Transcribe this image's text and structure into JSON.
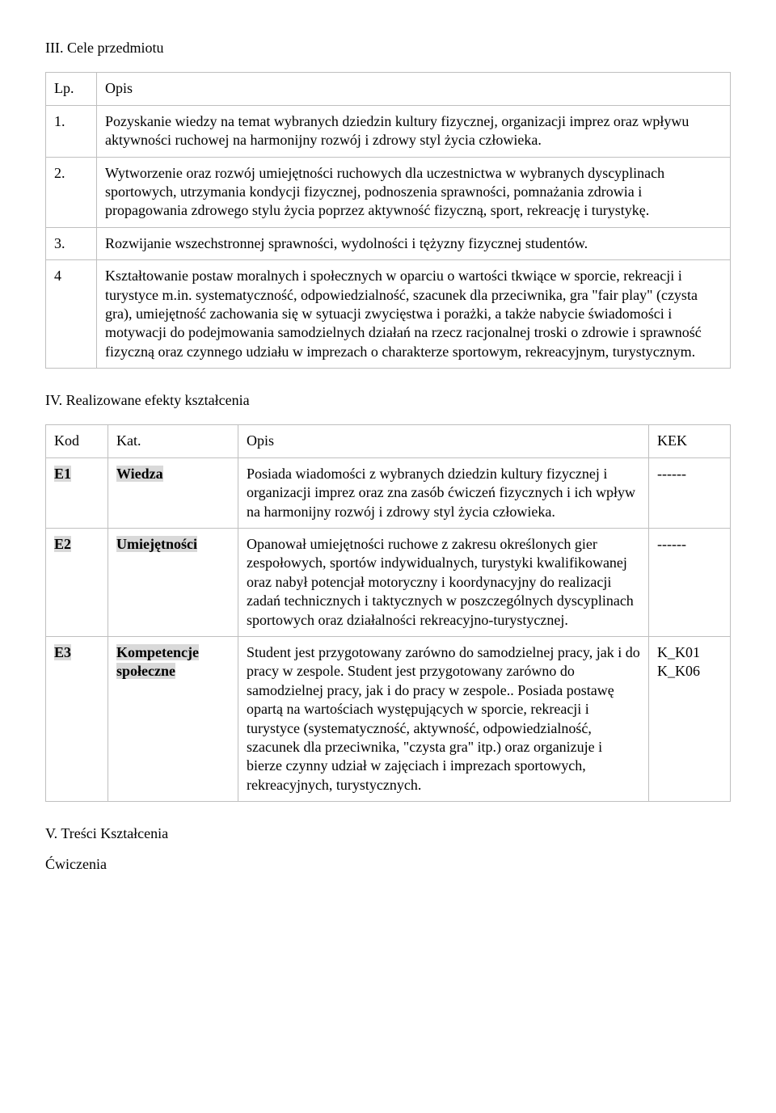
{
  "section3": {
    "heading": "III. Cele przedmiotu",
    "col_lp": "Lp.",
    "col_opis": "Opis",
    "rows": [
      {
        "lp": "1.",
        "opis": "Pozyskanie wiedzy na temat wybranych dziedzin kultury fizycznej, organizacji imprez oraz wpływu aktywności ruchowej na harmonijny rozwój i zdrowy styl życia człowieka."
      },
      {
        "lp": "2.",
        "opis": "Wytworzenie oraz rozwój umiejętności ruchowych dla uczestnictwa w wybranych dyscyplinach sportowych, utrzymania kondycji fizycznej, podnoszenia sprawności, pomnażania zdrowia i propagowania zdrowego stylu życia poprzez aktywność fizyczną, sport, rekreację i turystykę."
      },
      {
        "lp": "3.",
        "opis": "Rozwijanie wszechstronnej sprawności, wydolności i tężyzny fizycznej studentów."
      },
      {
        "lp": "4",
        "opis": "Kształtowanie postaw moralnych i społecznych w oparciu o wartości tkwiące w sporcie, rekreacji i turystyce m.in. systematyczność, odpowiedzialność, szacunek dla przeciwnika, gra \"fair play\" (czysta gra), umiejętność zachowania się w sytuacji zwycięstwa i porażki, a także nabycie świadomości i motywacji do podejmowania samodzielnych działań na rzecz racjonalnej troski o zdrowie i sprawność fizyczną oraz czynnego udziału w imprezach o charakterze sportowym, rekreacyjnym, turystycznym."
      }
    ]
  },
  "section4": {
    "heading": "IV. Realizowane efekty kształcenia",
    "col_kod": "Kod",
    "col_kat": "Kat.",
    "col_opis": "Opis",
    "col_kek": "KEK",
    "rows": [
      {
        "kod": "E1",
        "kat": "Wiedza",
        "opis": "Posiada wiadomości z wybranych dziedzin kultury fizycznej i organizacji imprez oraz zna zasób ćwiczeń fizycznych i ich wpływ na harmonijny rozwój i zdrowy styl życia człowieka.",
        "kek": "------"
      },
      {
        "kod": "E2",
        "kat": "Umiejętności",
        "opis": "Opanował umiejętności ruchowe z zakresu określonych gier zespołowych, sportów indywidualnych, turystyki kwalifikowanej oraz nabył potencjał motoryczny i koordynacyjny do realizacji zadań technicznych i taktycznych w poszczególnych dyscyplinach sportowych oraz działalności rekreacyjno-turystycznej.",
        "kek": "------"
      },
      {
        "kod": "E3",
        "kat": "Kompetencje społeczne",
        "opis": "Student jest przygotowany zarówno do samodzielnej pracy, jak i do pracy w zespole. Student jest przygotowany zarówno do samodzielnej pracy, jak i do pracy w zespole.. Posiada postawę opartą na wartościach występujących w sporcie, rekreacji i turystyce (systematyczność, aktywność, odpowiedzialność, szacunek dla przeciwnika, \"czysta gra\" itp.) oraz organizuje i bierze czynny udział w zajęciach i imprezach sportowych, rekreacyjnych, turystycznych.",
        "kek": "K_K01 K_K06"
      }
    ]
  },
  "section5": {
    "heading": "V. Treści Kształcenia",
    "sub": "Ćwiczenia"
  }
}
